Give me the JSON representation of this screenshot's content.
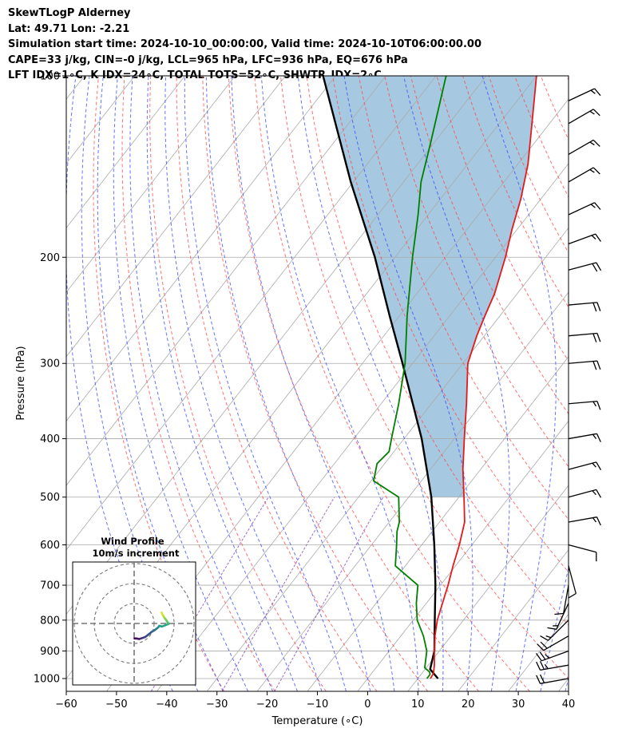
{
  "header": {
    "line1": "SkewTLogP Alderney",
    "line2": "Lat: 49.71   Lon: -2.21",
    "line3": "Simulation start time: 2024-10-10_00:00:00, Valid time: 2024-10-10T06:00:00.00",
    "line4": "CAPE=33 j/kg, CIN=-0 j/kg, LCL=965 hPa, LFC=936 hPa, EQ=676 hPa",
    "line5": "LFT IDX=1∘C, K IDX=24∘C, TOTAL TOTS=52∘C, SHWTR_IDX=2∘C"
  },
  "chart_data": [
    {
      "type": "line",
      "subtype": "skew-t log-p",
      "xlabel": "Temperature (∘C)",
      "ylabel": "Pressure (hPa)",
      "xlim": [
        -60,
        40
      ],
      "ylim": [
        1050,
        100
      ],
      "y_scale": "log",
      "x_ticks": [
        -60,
        -50,
        -40,
        -30,
        -20,
        -10,
        0,
        10,
        20,
        30,
        40
      ],
      "y_ticks": [
        1000,
        900,
        800,
        700,
        600,
        500,
        400,
        300,
        200,
        100
      ],
      "grid": true,
      "colors": {
        "temperature": "#e31a1c",
        "dewpoint": "#008000",
        "parcel": "#000000",
        "cape_fill": "#a6c8e0",
        "dry_adiabat": "#ff4444",
        "moist_adiabat": "#3344ff",
        "mixing_ratio": "#8844bb",
        "isotherm": "#aaaaaa"
      },
      "series": [
        {
          "role": "temperature",
          "points": [
            [
              1000,
              12.5
            ],
            [
              980,
              12.3
            ],
            [
              950,
              11.2
            ],
            [
              900,
              9.0
            ],
            [
              850,
              6.8
            ],
            [
              800,
              4.8
            ],
            [
              750,
              3.2
            ],
            [
              700,
              1.5
            ],
            [
              650,
              -0.5
            ],
            [
              600,
              -2.5
            ],
            [
              550,
              -5.0
            ],
            [
              500,
              -9.0
            ],
            [
              450,
              -13.5
            ],
            [
              400,
              -18.0
            ],
            [
              350,
              -23.0
            ],
            [
              300,
              -29.0
            ],
            [
              270,
              -31.5
            ],
            [
              250,
              -33.0
            ],
            [
              230,
              -34.5
            ],
            [
              200,
              -38.0
            ],
            [
              180,
              -41.0
            ],
            [
              160,
              -44.0
            ],
            [
              140,
              -48.0
            ],
            [
              120,
              -53.5
            ],
            [
              100,
              -60.0
            ]
          ]
        },
        {
          "role": "dewpoint",
          "points": [
            [
              1000,
              11.8
            ],
            [
              985,
              11.8
            ],
            [
              975,
              11.3
            ],
            [
              960,
              9.7
            ],
            [
              900,
              7.5
            ],
            [
              850,
              4.5
            ],
            [
              800,
              0.8
            ],
            [
              750,
              -2.0
            ],
            [
              700,
              -4.5
            ],
            [
              650,
              -12.0
            ],
            [
              600,
              -15.0
            ],
            [
              570,
              -17.0
            ],
            [
              550,
              -18.0
            ],
            [
              500,
              -22.0
            ],
            [
              470,
              -29.5
            ],
            [
              440,
              -31.5
            ],
            [
              420,
              -31.0
            ],
            [
              400,
              -32.5
            ],
            [
              350,
              -36.5
            ],
            [
              300,
              -41.5
            ],
            [
              250,
              -48.5
            ],
            [
              200,
              -56.5
            ],
            [
              170,
              -62.0
            ],
            [
              150,
              -66.5
            ],
            [
              130,
              -70.5
            ],
            [
              100,
              -78.0
            ]
          ]
        },
        {
          "role": "parcel",
          "points": [
            [
              1000,
              14.0
            ],
            [
              965,
              11.0
            ],
            [
              900,
              9.0
            ],
            [
              800,
              4.3
            ],
            [
              700,
              -1.0
            ],
            [
              600,
              -7.5
            ],
            [
              500,
              -15.5
            ],
            [
              400,
              -26.5
            ],
            [
              300,
              -42.0
            ],
            [
              250,
              -52.0
            ],
            [
              200,
              -64.0
            ],
            [
              150,
              -80.5
            ],
            [
              100,
              -102.5
            ]
          ]
        }
      ],
      "wind_barbs": [
        {
          "p": 1000,
          "speed": 20,
          "dir": 260
        },
        {
          "p": 950,
          "speed": 25,
          "dir": 260
        },
        {
          "p": 900,
          "speed": 25,
          "dir": 250
        },
        {
          "p": 850,
          "speed": 20,
          "dir": 240
        },
        {
          "p": 800,
          "speed": 15,
          "dir": 225
        },
        {
          "p": 750,
          "speed": 15,
          "dir": 205
        },
        {
          "p": 700,
          "speed": 10,
          "dir": 190
        },
        {
          "p": 650,
          "speed": 10,
          "dir": 165
        },
        {
          "p": 600,
          "speed": 10,
          "dir": 105
        },
        {
          "p": 550,
          "speed": 15,
          "dir": 80
        },
        {
          "p": 500,
          "speed": 15,
          "dir": 75
        },
        {
          "p": 450,
          "speed": 15,
          "dir": 75
        },
        {
          "p": 400,
          "speed": 15,
          "dir": 80
        },
        {
          "p": 350,
          "speed": 15,
          "dir": 85
        },
        {
          "p": 300,
          "speed": 20,
          "dir": 85
        },
        {
          "p": 270,
          "speed": 20,
          "dir": 85
        },
        {
          "p": 240,
          "speed": 20,
          "dir": 85
        },
        {
          "p": 210,
          "speed": 20,
          "dir": 75
        },
        {
          "p": 190,
          "speed": 15,
          "dir": 70
        },
        {
          "p": 170,
          "speed": 15,
          "dir": 65
        },
        {
          "p": 150,
          "speed": 15,
          "dir": 60
        },
        {
          "p": 135,
          "speed": 15,
          "dir": 60
        },
        {
          "p": 120,
          "speed": 15,
          "dir": 60
        },
        {
          "p": 110,
          "speed": 15,
          "dir": 65
        }
      ]
    },
    {
      "type": "scatter",
      "subtype": "hodograph",
      "title": "Wind Profile",
      "subtitle": "10m/s increment",
      "ring_step": 10,
      "rings": 3,
      "colormap": "viridis",
      "uv": [
        [
          0.2,
          -7.5
        ],
        [
          1.2,
          -7.5
        ],
        [
          2.5,
          -7.8
        ],
        [
          4.0,
          -7.3
        ],
        [
          5.5,
          -6.8
        ],
        [
          7.2,
          -5.5
        ],
        [
          8.8,
          -4.2
        ],
        [
          10.2,
          -3.4
        ],
        [
          11.0,
          -2.8
        ],
        [
          12.0,
          -2.0
        ],
        [
          12.6,
          -1.2
        ],
        [
          14.0,
          -1.5
        ],
        [
          16.5,
          -0.5
        ],
        [
          17.3,
          -0.2
        ],
        [
          16.8,
          0.5
        ],
        [
          16.0,
          1.8
        ],
        [
          15.2,
          2.8
        ],
        [
          14.8,
          3.5
        ],
        [
          14.2,
          4.5
        ],
        [
          13.8,
          5.5
        ]
      ]
    }
  ]
}
